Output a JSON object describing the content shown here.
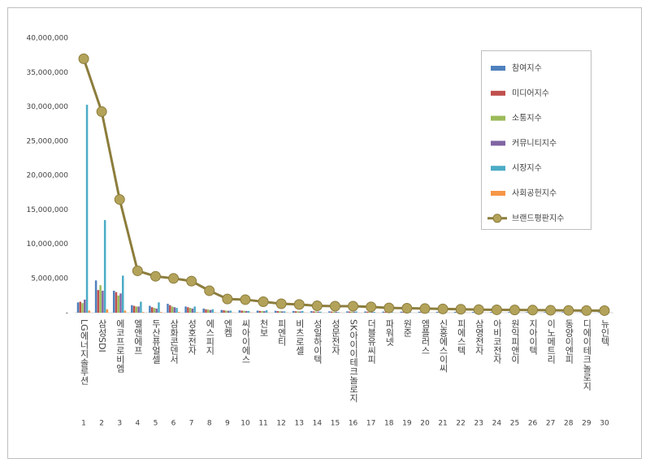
{
  "chart_data": {
    "type": "bar",
    "categories": [
      "LG에너지솔루션",
      "삼성SDI",
      "에코프로비엠",
      "엘앤에프",
      "두산퓨얼셀",
      "삼화콘덴서",
      "성호전자",
      "에스피지",
      "엔켐",
      "씨아이에스",
      "천보",
      "피엔티",
      "비츠로셀",
      "성일하이텍",
      "성문전자",
      "SK아이이테크놀로지",
      "더블유씨피",
      "파워넷",
      "원준",
      "엠플러스",
      "신흥에스이씨",
      "피에스텍",
      "삼영전자",
      "아비코전자",
      "원익피앤이",
      "지아이텍",
      "이노메트리",
      "동양이엔피",
      "디에이테크놀로지",
      "뉴인텍"
    ],
    "category_numbers": [
      1,
      2,
      3,
      4,
      5,
      6,
      7,
      8,
      9,
      10,
      11,
      12,
      13,
      14,
      15,
      16,
      17,
      18,
      19,
      20,
      21,
      22,
      23,
      24,
      25,
      26,
      27,
      28,
      29,
      30
    ],
    "ylim": [
      0,
      40000000
    ],
    "yticks": [
      {
        "value": 0,
        "label": "-"
      },
      {
        "value": 5000000,
        "label": "5,000,000"
      },
      {
        "value": 10000000,
        "label": "10,000,000"
      },
      {
        "value": 15000000,
        "label": "15,000,000"
      },
      {
        "value": 20000000,
        "label": "20,000,000"
      },
      {
        "value": 25000000,
        "label": "25,000,000"
      },
      {
        "value": 30000000,
        "label": "30,000,000"
      },
      {
        "value": 35000000,
        "label": "35,000,000"
      },
      {
        "value": 40000000,
        "label": "40,000,000"
      }
    ],
    "legend": "top-right",
    "series": [
      {
        "name": "참여지수",
        "color": "#4f81bd",
        "values": [
          1500000,
          4700000,
          3200000,
          1100000,
          1000000,
          1300000,
          900000,
          600000,
          400000,
          350000,
          300000,
          280000,
          250000,
          230000,
          200000,
          200000,
          180000,
          160000,
          150000,
          140000,
          130000,
          120000,
          110000,
          100000,
          95000,
          90000,
          85000,
          80000,
          75000,
          70000
        ]
      },
      {
        "name": "미디어지수",
        "color": "#c0504d",
        "values": [
          1600000,
          3300000,
          3000000,
          1000000,
          800000,
          1100000,
          800000,
          500000,
          350000,
          300000,
          260000,
          230000,
          210000,
          190000,
          170000,
          170000,
          150000,
          130000,
          120000,
          110000,
          100000,
          95000,
          90000,
          85000,
          80000,
          75000,
          70000,
          65000,
          60000,
          55000
        ]
      },
      {
        "name": "소통지수",
        "color": "#9bbb59",
        "values": [
          1400000,
          4000000,
          2500000,
          900000,
          700000,
          900000,
          700000,
          450000,
          300000,
          280000,
          240000,
          210000,
          190000,
          170000,
          150000,
          150000,
          130000,
          120000,
          110000,
          100000,
          95000,
          90000,
          85000,
          80000,
          75000,
          70000,
          65000,
          60000,
          55000,
          50000
        ]
      },
      {
        "name": "커뮤니티지수",
        "color": "#8064a2",
        "values": [
          1900000,
          3200000,
          2800000,
          900000,
          600000,
          800000,
          600000,
          400000,
          280000,
          250000,
          220000,
          200000,
          180000,
          160000,
          140000,
          140000,
          120000,
          110000,
          100000,
          95000,
          90000,
          85000,
          80000,
          75000,
          70000,
          65000,
          60000,
          55000,
          50000,
          45000
        ]
      },
      {
        "name": "시장지수",
        "color": "#4bacc6",
        "values": [
          30300000,
          13500000,
          5400000,
          1600000,
          1500000,
          700000,
          900000,
          500000,
          300000,
          250000,
          350000,
          200000,
          250000,
          150000,
          100000,
          180000,
          120000,
          90000,
          80000,
          70000,
          60000,
          55000,
          50000,
          45000,
          40000,
          40000,
          35000,
          30000,
          30000,
          25000
        ]
      },
      {
        "name": "사회공헌지수",
        "color": "#f79646",
        "values": [
          300000,
          500000,
          300000,
          100000,
          100000,
          100000,
          80000,
          60000,
          40000,
          40000,
          30000,
          30000,
          30000,
          20000,
          20000,
          20000,
          20000,
          20000,
          10000,
          10000,
          10000,
          10000,
          10000,
          10000,
          10000,
          10000,
          10000,
          10000,
          10000,
          10000
        ]
      },
      {
        "name": "브랜드평판지수",
        "color": "#8c7d3c",
        "type": "line",
        "values": [
          37000000,
          29300000,
          16500000,
          6100000,
          5300000,
          5000000,
          4600000,
          3200000,
          2000000,
          1900000,
          1600000,
          1300000,
          1200000,
          1000000,
          950000,
          950000,
          850000,
          700000,
          650000,
          600000,
          550000,
          500000,
          450000,
          420000,
          400000,
          380000,
          350000,
          330000,
          310000,
          300000
        ]
      }
    ]
  }
}
